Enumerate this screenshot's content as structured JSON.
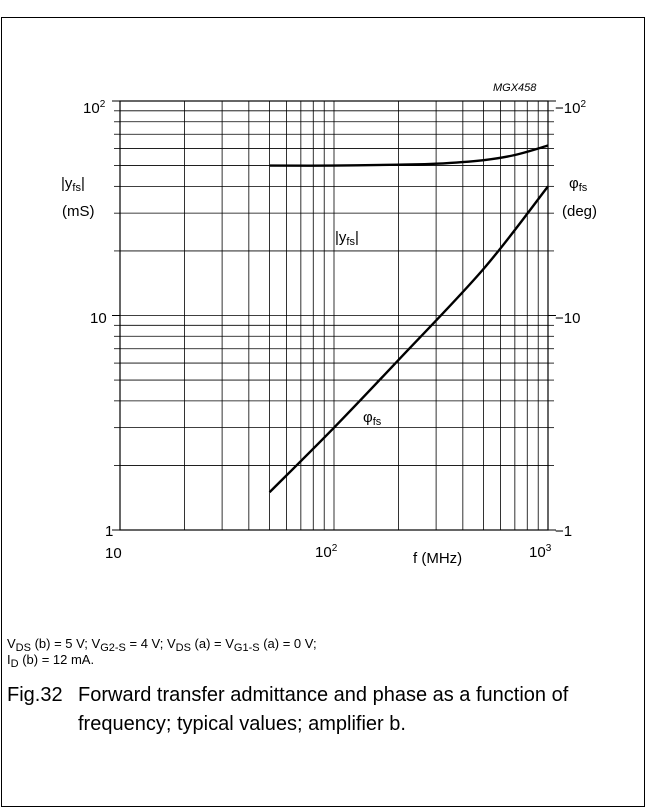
{
  "chart_data": {
    "type": "line",
    "code": "MGX458",
    "x_axis": {
      "label": "f (MHz)",
      "scale": "log",
      "range": [
        10,
        1000
      ],
      "ticks": [
        "10",
        "10",
        "10"
      ],
      "tick_exp": [
        "",
        "2",
        "3"
      ]
    },
    "y_left": {
      "label_symbol": "|y",
      "label_sub": "fs",
      "label_close": "|",
      "unit": "(mS)",
      "scale": "log",
      "range": [
        1,
        100
      ],
      "ticks": [
        "1",
        "10",
        "10"
      ],
      "tick_exp": [
        "",
        "",
        "2"
      ]
    },
    "y_right": {
      "label_symbol": "φ",
      "label_sub": "fs",
      "unit": "(deg)",
      "scale": "log",
      "range": [
        -1,
        -100
      ],
      "ticks": [
        "−1",
        "−10",
        "−10"
      ],
      "tick_exp": [
        "",
        "",
        "2"
      ]
    },
    "grid": true,
    "series": [
      {
        "name": "|yfs|",
        "label_main": "|y",
        "label_sub": "fs",
        "label_close": "|",
        "axis": "left",
        "x": [
          50,
          100,
          200,
          300,
          500,
          700,
          1000
        ],
        "y": [
          50,
          50,
          50.5,
          51,
          53,
          56,
          62
        ]
      },
      {
        "name": "φfs",
        "label_main": "φ",
        "label_sub": "fs",
        "axis": "right",
        "x": [
          50,
          100,
          200,
          500,
          1000
        ],
        "y": [
          -1.5,
          -3.0,
          -6.2,
          -16.5,
          -40
        ]
      }
    ]
  },
  "conditions": {
    "line1": [
      {
        "t": "V"
      },
      {
        "s": "DS"
      },
      {
        "t": " (b) = 5 V; V"
      },
      {
        "s": "G2-S"
      },
      {
        "t": " = 4 V; V"
      },
      {
        "s": "DS"
      },
      {
        "t": " (a) = V"
      },
      {
        "s": "G1-S"
      },
      {
        "t": " (a) = 0 V;"
      }
    ],
    "line2": [
      {
        "t": "I"
      },
      {
        "s": "D"
      },
      {
        "t": " (b) = 12 mA."
      }
    ]
  },
  "caption": {
    "number": "Fig.32",
    "text": "Forward transfer admittance and phase as a function of frequency; typical values; amplifier b."
  }
}
